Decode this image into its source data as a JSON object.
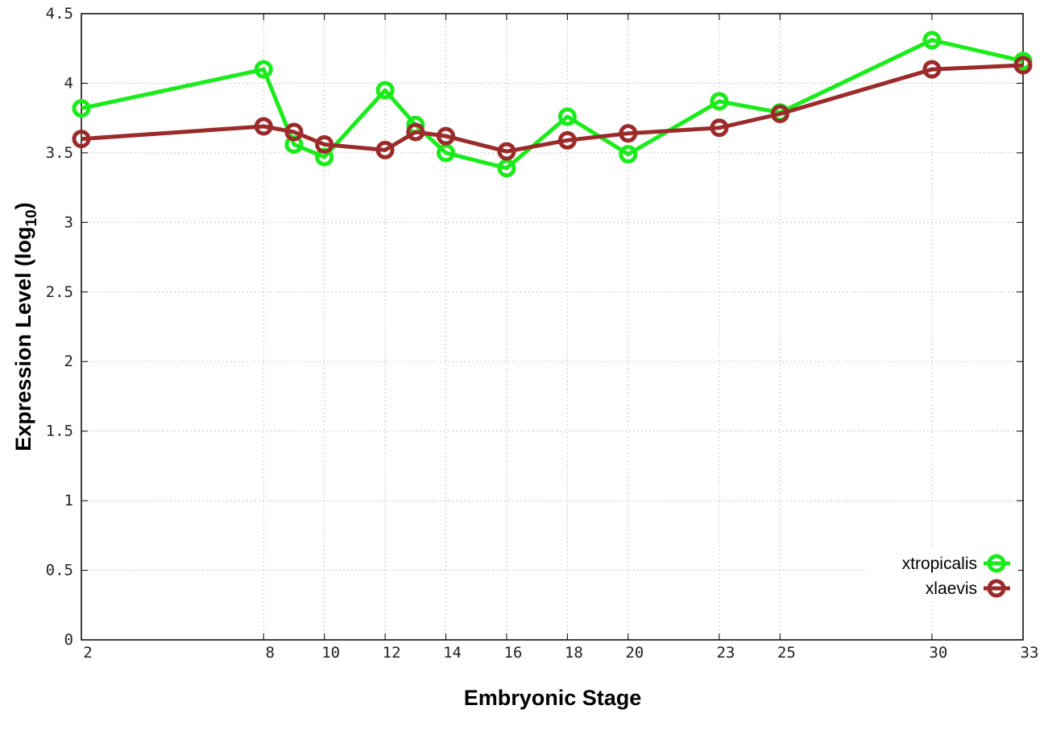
{
  "chart_data": {
    "type": "line",
    "xlabel": "Embryonic Stage",
    "ylabel_main": "Expression Level (log",
    "ylabel_sub": "10",
    "ylabel_close": ")",
    "x": [
      2,
      8,
      9,
      10,
      12,
      13,
      14,
      16,
      18,
      20,
      23,
      25,
      30,
      33
    ],
    "xticks": [
      2,
      8,
      10,
      12,
      14,
      16,
      18,
      20,
      23,
      25,
      30,
      33
    ],
    "yticks": [
      "0",
      "0.5",
      "1",
      "1.5",
      "2",
      "2.5",
      "3",
      "3.5",
      "4",
      "4.5"
    ],
    "ylim": [
      0,
      4.5
    ],
    "grid": true,
    "legend_position": "bottom-right",
    "series": [
      {
        "name": "xtropicalis",
        "color": "#1aeb1a",
        "values": [
          3.82,
          4.1,
          3.56,
          3.47,
          3.95,
          3.7,
          3.5,
          3.39,
          3.76,
          3.49,
          3.87,
          3.79,
          4.31,
          4.16
        ]
      },
      {
        "name": "xlaevis",
        "color": "#9b2b2b",
        "values": [
          3.6,
          3.69,
          3.65,
          3.56,
          3.52,
          3.65,
          3.62,
          3.51,
          3.59,
          3.64,
          3.68,
          3.78,
          4.1,
          4.13
        ]
      }
    ]
  }
}
